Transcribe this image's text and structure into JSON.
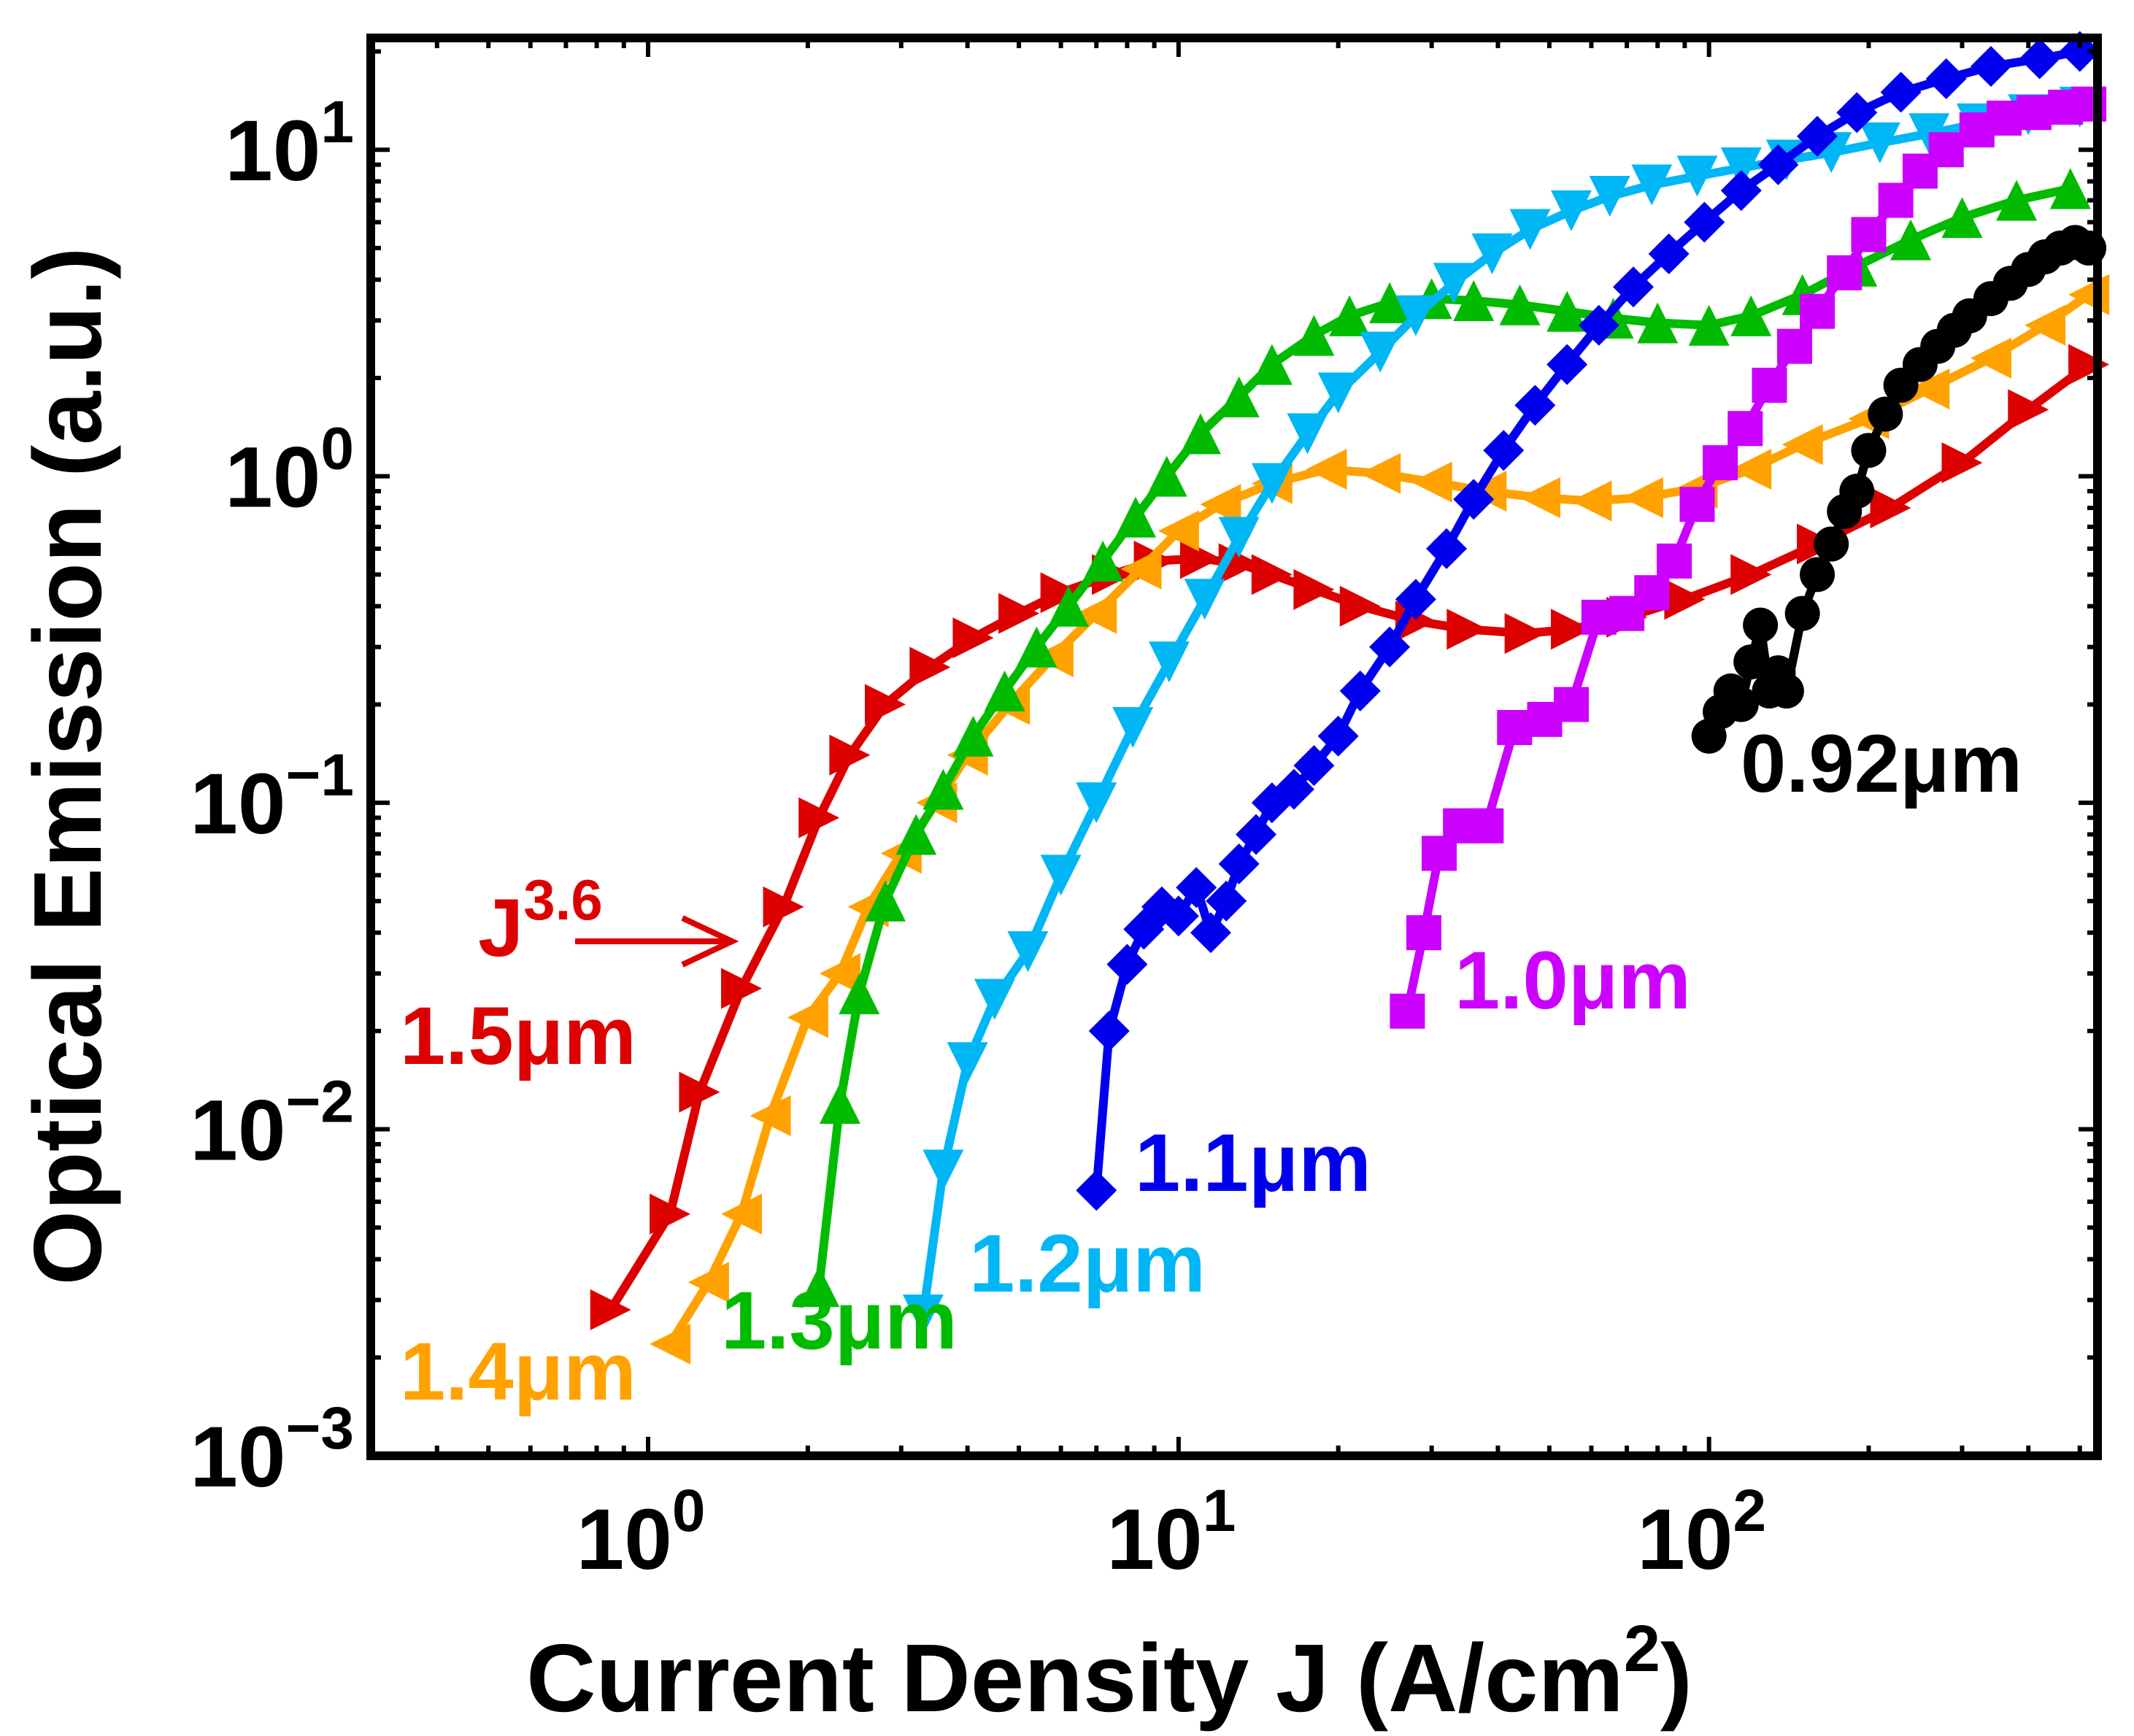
{
  "chart_data": {
    "type": "line",
    "xscale": "log",
    "yscale": "log",
    "xlim": [
      0.3,
      540
    ],
    "ylim": [
      0.001,
      22
    ],
    "xlabel": {
      "main": "Current Density J (A/cm",
      "sup": "2",
      "end": ")"
    },
    "ylabel": "Optical Emission (a.u.)",
    "xticks": [
      {
        "value": 1,
        "base": "10",
        "exp": "0"
      },
      {
        "value": 10,
        "base": "10",
        "exp": "1"
      },
      {
        "value": 100,
        "base": "10",
        "exp": "2"
      }
    ],
    "yticks": [
      {
        "value": 0.001,
        "base": "10",
        "exp": "−3"
      },
      {
        "value": 0.01,
        "base": "10",
        "exp": "−2"
      },
      {
        "value": 0.1,
        "base": "10",
        "exp": "−1"
      },
      {
        "value": 1,
        "base": "10",
        "exp": "0"
      },
      {
        "value": 10,
        "base": "10",
        "exp": "1"
      }
    ],
    "series": [
      {
        "name": "1.5μm",
        "label": "1.5μm",
        "color": "#DD0000",
        "marker": "triangle-right",
        "x": [
          0.85,
          1.1,
          1.25,
          1.5,
          1.8,
          2.1,
          2.4,
          2.8,
          3.4,
          4.1,
          5,
          6,
          7.5,
          9,
          11,
          13,
          15,
          18,
          22,
          28,
          35,
          45,
          55,
          70,
          90,
          120,
          160,
          220,
          300,
          400,
          520
        ],
        "y": [
          0.0028,
          0.0055,
          0.013,
          0.027,
          0.048,
          0.09,
          0.14,
          0.2,
          0.26,
          0.32,
          0.38,
          0.44,
          0.5,
          0.55,
          0.56,
          0.54,
          0.5,
          0.45,
          0.4,
          0.36,
          0.34,
          0.33,
          0.34,
          0.37,
          0.42,
          0.5,
          0.62,
          0.8,
          1.1,
          1.6,
          2.2
        ]
      },
      {
        "name": "1.4μm",
        "label": "1.4μm",
        "color": "#FFA200",
        "marker": "triangle-left",
        "x": [
          1.1,
          1.3,
          1.5,
          1.7,
          2,
          2.3,
          2.6,
          3,
          3.5,
          4,
          4.8,
          5.8,
          7,
          8.5,
          10,
          12,
          15,
          19,
          24,
          30,
          38,
          48,
          60,
          75,
          95,
          120,
          150,
          200,
          260,
          340,
          430,
          520
        ],
        "y": [
          0.0022,
          0.0034,
          0.0055,
          0.011,
          0.022,
          0.03,
          0.048,
          0.07,
          0.1,
          0.14,
          0.2,
          0.28,
          0.38,
          0.52,
          0.68,
          0.82,
          0.95,
          1.05,
          1.02,
          0.96,
          0.9,
          0.86,
          0.84,
          0.86,
          0.92,
          1.05,
          1.25,
          1.5,
          1.85,
          2.3,
          2.9,
          3.6
        ]
      },
      {
        "name": "1.3μm",
        "label": "1.3μm",
        "color": "#00BB00",
        "marker": "triangle-up",
        "x": [
          2.1,
          2.3,
          2.5,
          2.8,
          3.2,
          3.6,
          4.1,
          4.7,
          5.4,
          6.2,
          7.2,
          8.3,
          9.5,
          11,
          13,
          15,
          18,
          21,
          25,
          30,
          36,
          44,
          54,
          66,
          80,
          100,
          120,
          150,
          190,
          240,
          300,
          380,
          480
        ],
        "y": [
          0.0033,
          0.012,
          0.026,
          0.05,
          0.08,
          0.11,
          0.16,
          0.22,
          0.3,
          0.4,
          0.55,
          0.75,
          1,
          1.35,
          1.75,
          2.2,
          2.7,
          3.1,
          3.4,
          3.5,
          3.45,
          3.35,
          3.2,
          3.05,
          2.95,
          2.9,
          3.1,
          3.6,
          4.4,
          5.3,
          6.2,
          7,
          7.6
        ]
      },
      {
        "name": "1.2μm",
        "label": "1.2μm",
        "color": "#00B6F5",
        "marker": "triangle-down",
        "x": [
          3.3,
          3.6,
          4,
          4.5,
          5.2,
          6,
          7,
          8.2,
          9.6,
          11.2,
          13,
          15,
          17.5,
          20,
          24,
          28,
          33,
          39,
          46,
          55,
          65,
          78,
          95,
          115,
          140,
          170,
          210,
          260,
          320,
          400,
          500
        ],
        "y": [
          0.0027,
          0.0075,
          0.016,
          0.025,
          0.035,
          0.06,
          0.1,
          0.17,
          0.27,
          0.42,
          0.65,
          0.95,
          1.35,
          1.8,
          2.4,
          3.1,
          3.9,
          4.8,
          5.7,
          6.5,
          7.2,
          7.8,
          8.3,
          8.8,
          9.3,
          9.8,
          10.5,
          11.2,
          12,
          12.8,
          13.5
        ]
      },
      {
        "name": "1.1μm",
        "label": "1.1μm",
        "color": "#0000EE",
        "marker": "diamond",
        "x": [
          7,
          7.4,
          8,
          8.6,
          9.3,
          10,
          10.8,
          11.5,
          12.3,
          13,
          14,
          15,
          16.5,
          18,
          20,
          22,
          25,
          28,
          32,
          36,
          41,
          47,
          54,
          62,
          72,
          84,
          98,
          115,
          135,
          160,
          190,
          230,
          280,
          340,
          420,
          500
        ],
        "y": [
          0.0065,
          0.02,
          0.032,
          0.041,
          0.048,
          0.045,
          0.055,
          0.04,
          0.05,
          0.065,
          0.08,
          0.1,
          0.11,
          0.13,
          0.16,
          0.22,
          0.3,
          0.42,
          0.6,
          0.85,
          1.2,
          1.65,
          2.2,
          2.9,
          3.8,
          4.8,
          6,
          7.5,
          9,
          11,
          13,
          15,
          16.5,
          18,
          19,
          20
        ]
      },
      {
        "name": "1.0μm",
        "label": "1.0μm",
        "color": "#CC00FF",
        "marker": "square",
        "x": [
          27,
          29,
          31,
          34,
          38,
          43,
          49,
          55,
          62,
          70,
          78,
          86,
          95,
          105,
          117,
          130,
          145,
          160,
          180,
          200,
          225,
          250,
          280,
          320,
          360,
          410,
          470,
          520
        ],
        "y": [
          0.023,
          0.04,
          0.07,
          0.085,
          0.085,
          0.17,
          0.18,
          0.2,
          0.37,
          0.38,
          0.44,
          0.55,
          0.82,
          1.1,
          1.4,
          1.9,
          2.5,
          3.2,
          4.2,
          5.5,
          7,
          8.6,
          10,
          11.5,
          12.5,
          13,
          13.5,
          13.8
        ]
      },
      {
        "name": "0.92μm",
        "label": "0.92μm",
        "color": "#000000",
        "marker": "circle",
        "x": [
          100,
          105,
          110,
          115,
          120,
          125,
          130,
          135,
          140,
          150,
          160,
          170,
          180,
          190,
          200,
          215,
          230,
          250,
          270,
          290,
          310,
          340,
          370,
          400,
          430,
          460,
          490,
          520
        ],
        "y": [
          0.16,
          0.19,
          0.22,
          0.2,
          0.27,
          0.35,
          0.22,
          0.25,
          0.22,
          0.38,
          0.5,
          0.62,
          0.78,
          0.9,
          1.2,
          1.55,
          1.9,
          2.2,
          2.5,
          2.8,
          3.1,
          3.5,
          3.9,
          4.3,
          4.7,
          5,
          5.2,
          5
        ]
      }
    ],
    "annotation": {
      "base": "J",
      "exp": "3.6",
      "color": "#DD0000",
      "arrow_to": {
        "x": 1.5,
        "y": 0.035
      }
    }
  }
}
